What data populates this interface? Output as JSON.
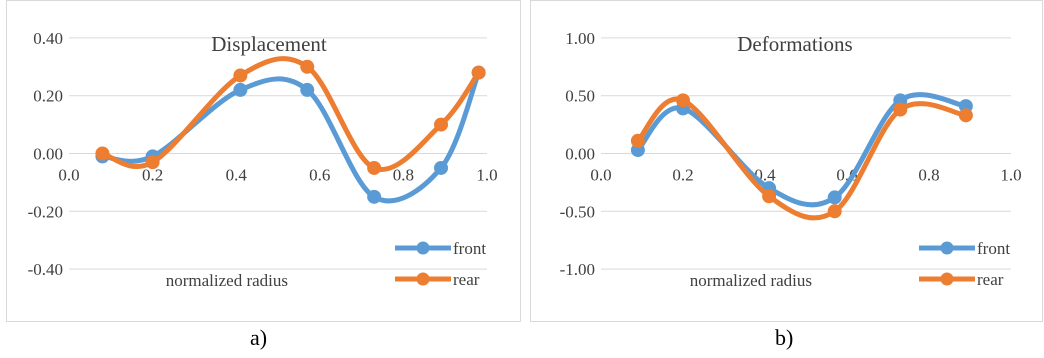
{
  "colors": {
    "front": "#5b9bd5",
    "rear": "#ed7d31",
    "grid": "#d9d9d9",
    "text": "#404040"
  },
  "chart_data": [
    {
      "type": "line",
      "title": "Displacement",
      "xlabel": "normalized radius",
      "ylabel": "",
      "xlim": [
        0.0,
        1.0
      ],
      "ylim": [
        -0.5,
        0.5
      ],
      "x_ticks": [
        "0.0",
        "0.2",
        "0.4",
        "0.6",
        "0.8",
        "1.0"
      ],
      "y_ticks": [
        "0.40",
        "0.20",
        "0.00",
        "-0.20",
        "-0.40"
      ],
      "y_tick_values": [
        0.4,
        0.2,
        0.0,
        -0.2,
        -0.4
      ],
      "grid": "horizontal",
      "legend": "bottom-right",
      "series": [
        {
          "name": "front",
          "x": [
            0.08,
            0.2,
            0.41,
            0.57,
            0.73,
            0.89,
            0.98
          ],
          "values": [
            -0.01,
            -0.01,
            0.22,
            0.22,
            -0.15,
            -0.05,
            0.28
          ]
        },
        {
          "name": "rear",
          "x": [
            0.08,
            0.2,
            0.41,
            0.57,
            0.73,
            0.89,
            0.98
          ],
          "values": [
            0.0,
            -0.03,
            0.27,
            0.3,
            -0.05,
            0.1,
            0.28
          ]
        }
      ],
      "caption": "a)"
    },
    {
      "type": "line",
      "title": "Deformations",
      "xlabel": "normalized radius",
      "ylabel": "",
      "xlim": [
        0.0,
        1.0
      ],
      "ylim": [
        -1.25,
        1.25
      ],
      "x_ticks": [
        "0.0",
        "0.2",
        "0.4",
        "0.6",
        "0.8",
        "1.0"
      ],
      "y_ticks": [
        "1.00",
        "0.50",
        "0.00",
        "-0.50",
        "-1.00"
      ],
      "y_tick_values": [
        1.0,
        0.5,
        0.0,
        -0.5,
        -1.0
      ],
      "grid": "horizontal",
      "legend": "bottom-right",
      "series": [
        {
          "name": "front",
          "x": [
            0.09,
            0.2,
            0.41,
            0.57,
            0.73,
            0.89
          ],
          "values": [
            0.03,
            0.39,
            -0.3,
            -0.38,
            0.46,
            0.41
          ]
        },
        {
          "name": "rear",
          "x": [
            0.09,
            0.2,
            0.41,
            0.57,
            0.73,
            0.89
          ],
          "values": [
            0.11,
            0.46,
            -0.37,
            -0.5,
            0.38,
            0.33
          ]
        }
      ],
      "caption": "b)"
    }
  ]
}
